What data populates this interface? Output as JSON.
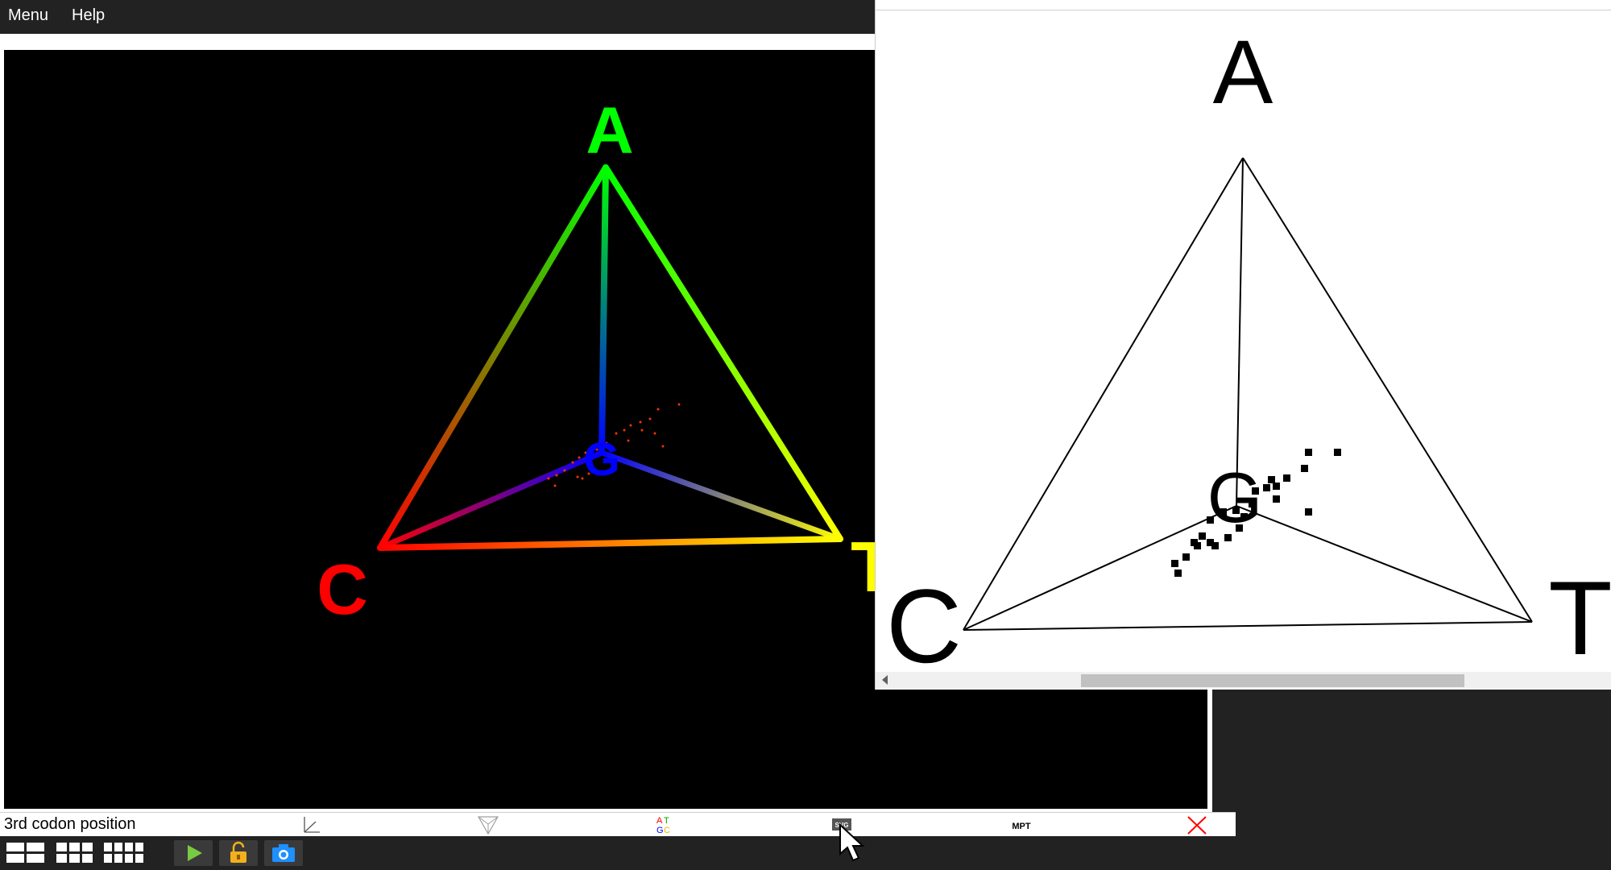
{
  "menubar": {
    "items": [
      "Menu",
      "Help"
    ]
  },
  "main_view": {
    "vertex_labels": {
      "a": "A",
      "c": "C",
      "t": "T",
      "g": "G"
    },
    "colors": {
      "a": "#00ff00",
      "c": "#ff0000",
      "t": "#ffff00",
      "g": "#0000ff",
      "points": "#ff3300"
    }
  },
  "toolbar": {
    "label": "3rd codon position",
    "icons": [
      "axes-icon",
      "triangle-icon",
      "atgc-icon",
      "svg-export-icon",
      "mpt-icon",
      "close-icon"
    ],
    "atgc": {
      "top": "AT",
      "bottom": "GC"
    },
    "svg_label": "SVG",
    "mpt_label": "MPT"
  },
  "bottombar": {
    "icons": [
      "layout-2x2-icon",
      "layout-3x2-icon",
      "layout-4x2-icon",
      "play-icon",
      "unlock-icon",
      "camera-icon"
    ],
    "accent": {
      "play": "#7ac943",
      "lock": "#f2b01e",
      "camera": "#1e90ff"
    }
  },
  "svg_preview": {
    "vertex_labels": {
      "a": "A",
      "c": "C",
      "t": "T",
      "g": "G"
    }
  }
}
